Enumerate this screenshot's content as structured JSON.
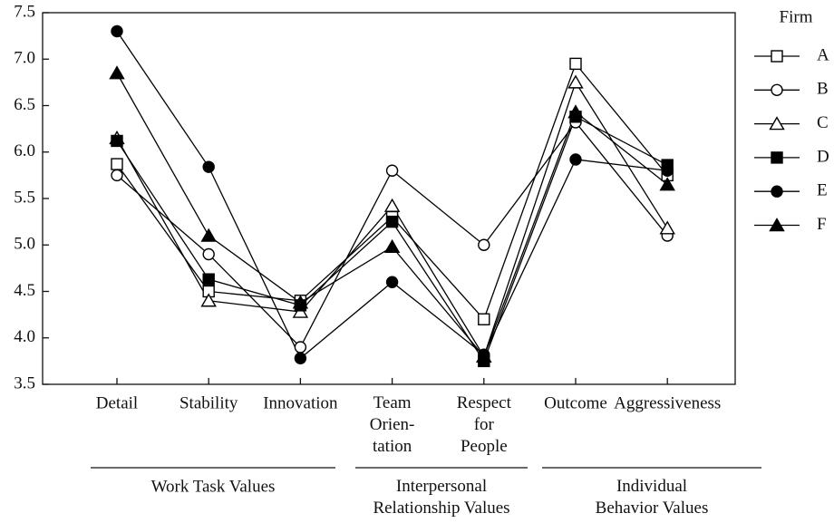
{
  "chart_data": {
    "type": "line",
    "categories": [
      "Detail",
      "Stability",
      "Innovation",
      "Team\nOrien-\ntation",
      "Respect\nfor\nPeople",
      "Outcome",
      "Aggressiveness"
    ],
    "groups": [
      {
        "label": "Work Task Values",
        "span": [
          0,
          2
        ]
      },
      {
        "label": "Interpersonal\nRelationship Values",
        "span": [
          3,
          4
        ]
      },
      {
        "label": "Individual\nBehavior Values",
        "span": [
          5,
          6
        ]
      }
    ],
    "legend_title": "Firm",
    "series": [
      {
        "name": "A",
        "color": "#000000",
        "marker": "square",
        "filled": false,
        "values": [
          5.87,
          4.5,
          4.4,
          5.3,
          4.2,
          6.95,
          5.75
        ]
      },
      {
        "name": "B",
        "color": "#000000",
        "marker": "circle",
        "filled": false,
        "values": [
          5.75,
          4.9,
          3.9,
          5.8,
          5.0,
          6.32,
          5.1
        ]
      },
      {
        "name": "C",
        "color": "#000000",
        "marker": "triangle",
        "filled": false,
        "values": [
          6.15,
          4.4,
          4.28,
          5.42,
          3.8,
          6.75,
          5.18
        ]
      },
      {
        "name": "D",
        "color": "#000000",
        "marker": "square",
        "filled": true,
        "values": [
          6.12,
          4.63,
          4.35,
          5.25,
          3.75,
          6.38,
          5.86
        ]
      },
      {
        "name": "E",
        "color": "#000000",
        "marker": "circle",
        "filled": true,
        "values": [
          7.3,
          5.84,
          3.78,
          4.6,
          3.82,
          5.92,
          5.8
        ]
      },
      {
        "name": "F",
        "color": "#000000",
        "marker": "triangle",
        "filled": true,
        "values": [
          6.85,
          5.1,
          4.38,
          4.98,
          3.8,
          6.43,
          5.65
        ]
      }
    ],
    "ylim": [
      3.5,
      7.5
    ],
    "yticks": [
      3.5,
      {
        "value": 4,
        "label": "4.0"
      },
      4.5,
      {
        "value": 5,
        "label": "5.0"
      },
      5.5,
      {
        "value": 6,
        "label": "6.0"
      },
      6.5,
      {
        "value": 7,
        "label": "7.0"
      },
      7.5
    ],
    "grid": false
  }
}
